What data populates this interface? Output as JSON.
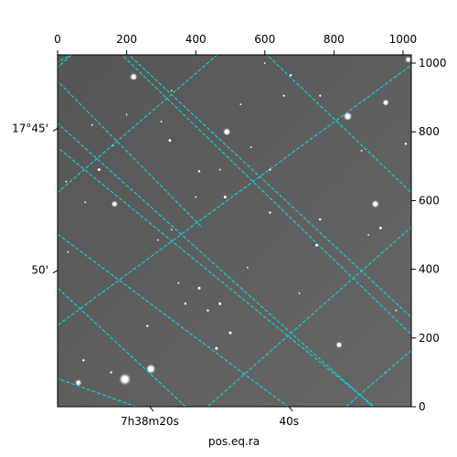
{
  "chart_data": {
    "type": "image",
    "xlabel": "pos.eq.ra",
    "pixel_axes": {
      "x": {
        "range": [
          0,
          1024
        ],
        "ticks": [
          0,
          200,
          400,
          600,
          800,
          1000
        ]
      },
      "y": {
        "range": [
          0,
          1024
        ],
        "ticks": [
          0,
          200,
          400,
          600,
          800,
          1000
        ]
      }
    },
    "world_axes": {
      "ra_ticks": [
        {
          "label": "7h38m20s",
          "x": 267
        },
        {
          "label": "40s",
          "x": 670
        }
      ],
      "dec_ticks": [
        {
          "label": "17°45'",
          "y": 810
        },
        {
          "label": "50'",
          "y": 397
        }
      ]
    },
    "grid": true,
    "grid_color": "#00e5e5",
    "image_background": "#5c5c5c",
    "stars": [
      [
        220,
        960,
        3.5
      ],
      [
        840,
        845,
        4
      ],
      [
        950,
        885,
        3
      ],
      [
        490,
        800,
        3.5
      ],
      [
        325,
        775,
        2.5
      ],
      [
        120,
        690,
        2.5
      ],
      [
        615,
        690,
        2
      ],
      [
        410,
        685,
        2
      ],
      [
        165,
        590,
        3
      ],
      [
        485,
        610,
        2.5
      ],
      [
        615,
        565,
        2
      ],
      [
        920,
        590,
        3.5
      ],
      [
        935,
        520,
        2.5
      ],
      [
        760,
        545,
        2
      ],
      [
        750,
        470,
        2.5
      ],
      [
        410,
        345,
        2.5
      ],
      [
        435,
        280,
        2
      ],
      [
        470,
        300,
        2.5
      ],
      [
        370,
        300,
        2
      ],
      [
        260,
        235,
        2
      ],
      [
        500,
        215,
        2.5
      ],
      [
        460,
        170,
        2.5
      ],
      [
        815,
        180,
        3
      ],
      [
        270,
        110,
        4.5
      ],
      [
        195,
        80,
        5.5
      ],
      [
        60,
        70,
        3
      ],
      [
        155,
        100,
        2
      ],
      [
        675,
        965,
        2
      ],
      [
        760,
        905,
        1.8
      ],
      [
        655,
        905,
        1.8
      ],
      [
        1015,
        1010,
        3
      ],
      [
        1008,
        765,
        2
      ],
      [
        160,
        760,
        1.5
      ],
      [
        560,
        755,
        1.5
      ],
      [
        25,
        655,
        1.5
      ],
      [
        80,
        595,
        1.5
      ],
      [
        330,
        515,
        1.5
      ],
      [
        350,
        360,
        1.5
      ],
      [
        290,
        485,
        1.5
      ],
      [
        470,
        690,
        1.5
      ],
      [
        600,
        1000,
        1.5
      ],
      [
        330,
        920,
        1.5
      ],
      [
        75,
        135,
        2
      ],
      [
        900,
        500,
        1.5
      ],
      [
        30,
        450,
        1.5
      ],
      [
        200,
        850,
        1.5
      ],
      [
        530,
        880,
        1.5
      ],
      [
        100,
        820,
        1.5
      ],
      [
        880,
        745,
        1.5
      ],
      [
        400,
        610,
        1.5
      ],
      [
        550,
        405,
        1.5
      ],
      [
        980,
        280,
        1.5
      ],
      [
        950,
        100,
        1.5
      ],
      [
        700,
        330,
        1.5
      ],
      [
        300,
        830,
        1.5
      ]
    ]
  }
}
